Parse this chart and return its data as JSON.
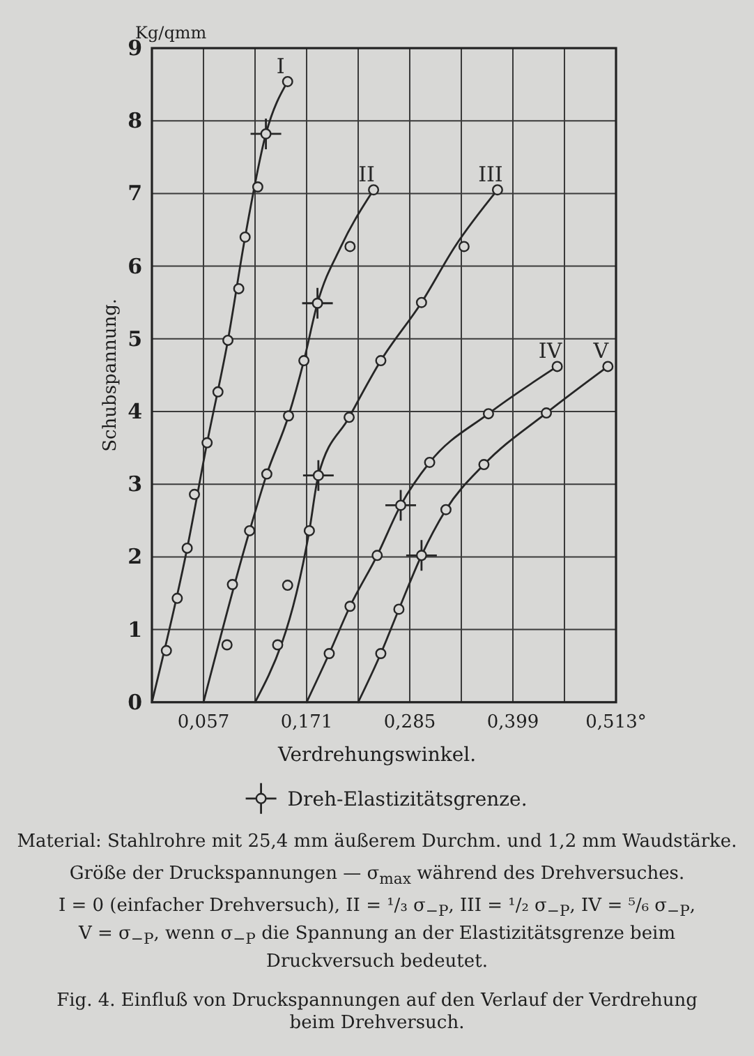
{
  "chart_data": {
    "type": "line",
    "xlabel": "Verdrehungswinkel.",
    "ylabel": "Schubspannung.",
    "xlim": [
      0,
      0.513
    ],
    "xticks": [
      {
        "value": 0.057,
        "label": "0,057"
      },
      {
        "value": 0.114,
        "label": null
      },
      {
        "value": 0.171,
        "label": "0,171"
      },
      {
        "value": 0.228,
        "label": null
      },
      {
        "value": 0.285,
        "label": "0,285"
      },
      {
        "value": 0.342,
        "label": null
      },
      {
        "value": 0.399,
        "label": "0,399"
      },
      {
        "value": 0.456,
        "label": null
      },
      {
        "value": 0.513,
        "label": "0,513°"
      }
    ],
    "ylim": [
      0,
      9
    ],
    "yticks": [
      0,
      1,
      2,
      3,
      4,
      5,
      6,
      7,
      8,
      9
    ],
    "grid": true,
    "legend": "bottom",
    "series": [
      {
        "name": "I",
        "color": "#262626",
        "marker": "none",
        "x": [
          0,
          0.039,
          0.061,
          0.084,
          0.103,
          0.126,
          0.15
        ],
        "values": [
          0,
          2.12,
          3.57,
          4.98,
          6.4,
          7.82,
          8.54
        ]
      },
      {
        "name": "II",
        "color": "#262626",
        "marker": "none",
        "x": [
          0.057,
          0.108,
          0.127,
          0.151,
          0.168,
          0.183,
          0.209,
          0.245
        ],
        "values": [
          0,
          2.36,
          3.14,
          3.94,
          4.7,
          5.49,
          6.27,
          7.05
        ]
      },
      {
        "name": "III",
        "color": "#262626",
        "marker": "none",
        "x": [
          0.114,
          0.174,
          0.184,
          0.218,
          0.253,
          0.298,
          0.335,
          0.382
        ],
        "values": [
          0,
          2.36,
          3.12,
          3.92,
          4.7,
          5.5,
          6.27,
          7.05
        ]
      },
      {
        "name": "IV",
        "color": "#262626",
        "marker": "none",
        "x": [
          0.171,
          0.196,
          0.219,
          0.249,
          0.275,
          0.307,
          0.372,
          0.448
        ],
        "values": [
          0,
          0.67,
          1.32,
          2.02,
          2.71,
          3.3,
          3.97,
          4.62
        ]
      },
      {
        "name": "V",
        "color": "#262626",
        "marker": "none",
        "x": [
          0.228,
          0.253,
          0.273,
          0.298,
          0.325,
          0.367,
          0.436,
          0.504
        ],
        "values": [
          0,
          0.67,
          1.28,
          2.02,
          2.65,
          3.27,
          3.98,
          4.62
        ]
      },
      {
        "type": "scatter",
        "color": "#262626",
        "marker": "circle",
        "x": [
          0.016,
          0.028,
          0.039,
          0.047,
          0.061,
          0.073,
          0.084,
          0.096,
          0.103,
          0.117,
          0.126,
          0.15,
          0.083,
          0.089,
          0.108,
          0.127,
          0.151,
          0.168,
          0.183,
          0.219,
          0.245,
          0.139,
          0.15,
          0.174,
          0.184,
          0.218,
          0.253,
          0.298,
          0.345,
          0.382,
          0.196,
          0.219,
          0.249,
          0.275,
          0.307,
          0.372,
          0.448,
          0.253,
          0.273,
          0.298,
          0.325,
          0.367,
          0.436,
          0.504
        ],
        "values": [
          0.71,
          1.43,
          2.12,
          2.86,
          3.57,
          4.27,
          4.98,
          5.69,
          6.4,
          7.09,
          7.82,
          8.54,
          0.79,
          1.62,
          2.36,
          3.14,
          3.94,
          4.7,
          5.49,
          6.27,
          7.05,
          0.79,
          1.61,
          2.36,
          3.12,
          3.92,
          4.7,
          5.5,
          6.27,
          7.05,
          0.67,
          1.32,
          2.02,
          2.71,
          3.3,
          3.97,
          4.62,
          0.67,
          1.28,
          2.02,
          2.65,
          3.27,
          3.98,
          4.62
        ]
      },
      {
        "name": "Dreh-Elastizitätsgrenze.",
        "type": "scatter",
        "color": "#262626",
        "marker": "cross",
        "x": [
          0.126,
          0.183,
          0.184,
          0.275,
          0.298
        ],
        "values": [
          7.82,
          5.49,
          3.12,
          2.71,
          2.02
        ]
      }
    ],
    "annotations": [
      "Kg/qmm",
      "Material: Stahlrohre mit 25,4 mm äußerem Durchm. und 1,2 mm Waudstärke.",
      "Größe der Druckspannungen — σ$_{max}$ während des Drehversuches.",
      "I = 0 (einfacher Drehversuch), II = ¹/₃ σ$_{−P}$, III = ¹/₂ σ$_{−P}$, IV = ⁵/₆ σ$_{−P}$, V = σ$_{−P}$, wenn σ$_{−P}$ die Spannung an der Elastizitätsgrenze beim Druckversuch bedeutet.",
      "Fig. 4. Einfluß von Druckspannungen auf den Verlauf der Verdrehung beim Drehversuch."
    ]
  }
}
